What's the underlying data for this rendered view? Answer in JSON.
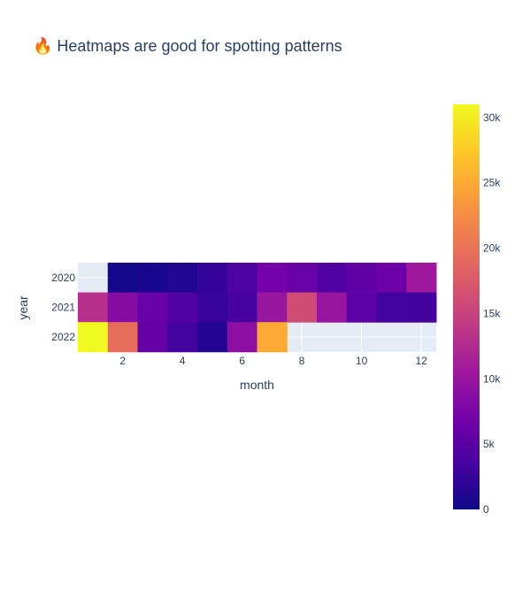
{
  "chart_data": {
    "type": "heatmap",
    "title": "🔥 Heatmaps are good for spotting patterns",
    "xlabel": "month",
    "ylabel": "year",
    "x": [
      1,
      2,
      3,
      4,
      5,
      6,
      7,
      8,
      9,
      10,
      11,
      12
    ],
    "xticks": [
      2,
      4,
      6,
      8,
      10,
      12
    ],
    "y": [
      "2020",
      "2021",
      "2022"
    ],
    "z": [
      [
        null,
        500,
        800,
        1200,
        2500,
        4000,
        7000,
        6000,
        4500,
        5500,
        6500,
        10500
      ],
      [
        13000,
        8500,
        6000,
        4500,
        2600,
        3500,
        10000,
        16000,
        10000,
        5000,
        3300,
        3200
      ],
      [
        31000,
        19500,
        5800,
        3300,
        1300,
        9000,
        25000,
        null,
        null,
        null,
        null,
        null
      ]
    ],
    "colorscale": "Plasma",
    "zmin": 0,
    "zmax": 31000,
    "colorbar_ticks": [
      "0",
      "5k",
      "10k",
      "15k",
      "20k",
      "25k",
      "30k"
    ],
    "colorbar_tick_values": [
      0,
      5000,
      10000,
      15000,
      20000,
      25000,
      30000
    ],
    "plot_background": "#e5ecf6",
    "grid": true,
    "colors": {
      "text": "#2a3f5f",
      "grid": "#ffffff"
    }
  }
}
